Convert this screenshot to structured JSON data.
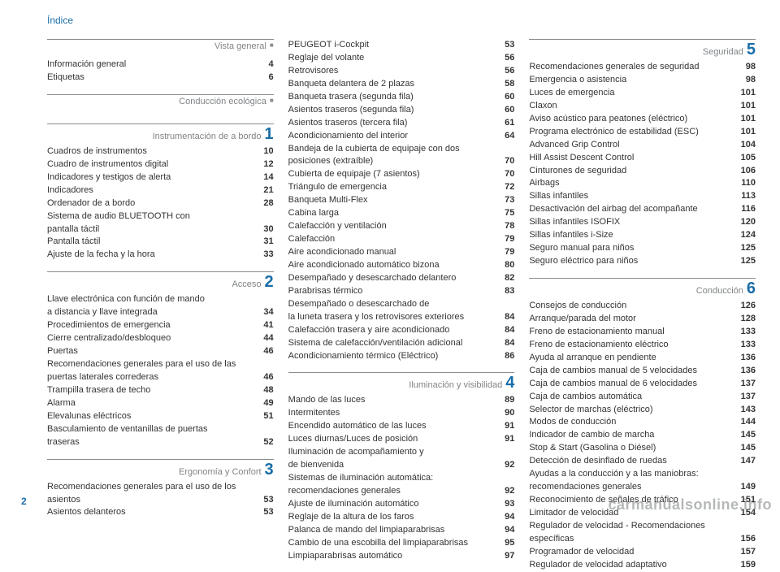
{
  "header": "Índice",
  "page_number": "2",
  "watermark": "carmanualsonline.info",
  "columns": [
    {
      "sections": [
        {
          "title": "Vista general",
          "marker": "dot",
          "entries": [
            {
              "label": "Información general",
              "page": "4"
            },
            {
              "label": "Etiquetas",
              "page": "6"
            }
          ]
        },
        {
          "title": "Conducción ecológica",
          "marker": "dot",
          "entries": []
        },
        {
          "title": "Instrumentación de a bordo",
          "marker": "1",
          "entries": [
            {
              "label": "Cuadros de instrumentos",
              "page": "10"
            },
            {
              "label": "Cuadro de instrumentos digital",
              "page": "12"
            },
            {
              "label": "Indicadores y testigos de alerta",
              "page": "14"
            },
            {
              "label": "Indicadores",
              "page": "21"
            },
            {
              "label": "Ordenador de a bordo",
              "page": "28"
            },
            {
              "label_lines": [
                "Sistema de audio BLUETOOTH con",
                "pantalla táctil"
              ],
              "page": "30"
            },
            {
              "label": "Pantalla táctil",
              "page": "31"
            },
            {
              "label": "Ajuste de la fecha y la hora",
              "page": "33"
            }
          ]
        },
        {
          "title": "Acceso",
          "marker": "2",
          "entries": [
            {
              "label_lines": [
                "Llave electrónica con función de mando",
                "a distancia y llave integrada"
              ],
              "page": "34"
            },
            {
              "label": "Procedimientos de emergencia",
              "page": "41"
            },
            {
              "label": "Cierre centralizado/desbloqueo",
              "page": "44"
            },
            {
              "label": "Puertas",
              "page": "46"
            },
            {
              "label_lines": [
                "Recomendaciones generales para el uso de las",
                "puertas laterales correderas"
              ],
              "page": "46"
            },
            {
              "label": "Trampilla trasera de techo",
              "page": "48"
            },
            {
              "label": "Alarma",
              "page": "49"
            },
            {
              "label": "Elevalunas eléctricos",
              "page": "51"
            },
            {
              "label_lines": [
                "Basculamiento de ventanillas de puertas",
                "traseras"
              ],
              "page": "52"
            }
          ]
        },
        {
          "title": "Ergonomía y Confort",
          "marker": "3",
          "entries": [
            {
              "label_lines": [
                "Recomendaciones generales para el uso de los",
                "asientos"
              ],
              "page": "53"
            },
            {
              "label": "Asientos delanteros",
              "page": "53"
            }
          ]
        }
      ]
    },
    {
      "sections": [
        {
          "title": "",
          "marker": "",
          "entries": [
            {
              "label": "PEUGEOT i-Cockpit",
              "page": "53"
            },
            {
              "label": "Reglaje del volante",
              "page": "56"
            },
            {
              "label": "Retrovisores",
              "page": "56"
            },
            {
              "label": "Banqueta delantera de 2 plazas",
              "page": "58"
            },
            {
              "label": "Banqueta trasera (segunda fila)",
              "page": "60"
            },
            {
              "label": "Asientos traseros (segunda fila)",
              "page": "60"
            },
            {
              "label": "Asientos traseros (tercera fila)",
              "page": "61"
            },
            {
              "label": "Acondicionamiento del interior",
              "page": "64"
            },
            {
              "label_lines": [
                "Bandeja de la cubierta de equipaje con dos",
                "posiciones (extraíble)"
              ],
              "page": "70"
            },
            {
              "label": "Cubierta de equipaje (7 asientos)",
              "page": "70"
            },
            {
              "label": "Triángulo de emergencia",
              "page": "72"
            },
            {
              "label": "Banqueta Multi-Flex",
              "page": "73"
            },
            {
              "label": "Cabina larga",
              "page": "75"
            },
            {
              "label": "Calefacción y ventilación",
              "page": "78"
            },
            {
              "label": "Calefacción",
              "page": "79"
            },
            {
              "label": "Aire acondicionado manual",
              "page": "79"
            },
            {
              "label": "Aire acondicionado automático bizona",
              "page": "80"
            },
            {
              "label": "Desempañado y desescarchado delantero",
              "page": "82"
            },
            {
              "label": "Parabrisas térmico",
              "page": "83"
            },
            {
              "label_lines": [
                "Desempañado o desescarchado de",
                "la luneta trasera y los retrovisores exteriores"
              ],
              "page": "84"
            },
            {
              "label": "Calefacción trasera y aire acondicionado",
              "page": "84"
            },
            {
              "label": "Sistema de calefacción/ventilación adicional",
              "page": "84"
            },
            {
              "label": "Acondicionamiento térmico (Eléctrico)",
              "page": "86"
            }
          ]
        },
        {
          "title": "Iluminación y visibilidad",
          "marker": "4",
          "entries": [
            {
              "label": "Mando de las luces",
              "page": "89"
            },
            {
              "label": "Intermitentes",
              "page": "90"
            },
            {
              "label": "Encendido automático de las luces",
              "page": "91"
            },
            {
              "label": "Luces diurnas/Luces de posición",
              "page": "91"
            },
            {
              "label_lines": [
                "Iluminación de acompañamiento y",
                "de bienvenida"
              ],
              "page": "92"
            },
            {
              "label_lines": [
                "Sistemas de iluminación automática:",
                "recomendaciones generales"
              ],
              "page": "92"
            },
            {
              "label": "Ajuste de iluminación automático",
              "page": "93"
            },
            {
              "label": "Reglaje de la altura de los faros",
              "page": "94"
            },
            {
              "label": "Palanca de mando del limpiaparabrisas",
              "page": "94"
            },
            {
              "label": "Cambio de una escobilla del limpiaparabrisas",
              "page": "95"
            },
            {
              "label": "Limpiaparabrisas automático",
              "page": "97"
            }
          ]
        }
      ]
    },
    {
      "sections": [
        {
          "title": "Seguridad",
          "marker": "5",
          "entries": [
            {
              "label": "Recomendaciones generales de seguridad",
              "page": "98"
            },
            {
              "label": "Emergencia o asistencia",
              "page": "98"
            },
            {
              "label": "Luces de emergencia",
              "page": "101"
            },
            {
              "label": "Claxon",
              "page": "101"
            },
            {
              "label": "Aviso acústico para peatones (eléctrico)",
              "page": "101"
            },
            {
              "label": "Programa electrónico de estabilidad (ESC)",
              "page": "101"
            },
            {
              "label": "Advanced Grip Control",
              "page": "104"
            },
            {
              "label": "Hill Assist Descent Control",
              "page": "105"
            },
            {
              "label": "Cinturones de seguridad",
              "page": "106"
            },
            {
              "label": "Airbags",
              "page": "110"
            },
            {
              "label": "Sillas infantiles",
              "page": "113"
            },
            {
              "label": "Desactivación del airbag del acompañante",
              "page": "116"
            },
            {
              "label": "Sillas infantiles ISOFIX",
              "page": "120"
            },
            {
              "label": "Sillas infantiles i-Size",
              "page": "124"
            },
            {
              "label": "Seguro manual para niños",
              "page": "125"
            },
            {
              "label": "Seguro eléctrico para niños",
              "page": "125"
            }
          ]
        },
        {
          "title": "Conducción",
          "marker": "6",
          "entries": [
            {
              "label": "Consejos de conducción",
              "page": "126"
            },
            {
              "label": "Arranque/parada del motor",
              "page": "128"
            },
            {
              "label": "Freno de estacionamiento manual",
              "page": "133"
            },
            {
              "label": "Freno de estacionamiento eléctrico",
              "page": "133"
            },
            {
              "label": "Ayuda al arranque en pendiente",
              "page": "136"
            },
            {
              "label": "Caja de cambios manual de 5 velocidades",
              "page": "136"
            },
            {
              "label": "Caja de cambios manual de 6 velocidades",
              "page": "137"
            },
            {
              "label": "Caja de cambios automática",
              "page": "137"
            },
            {
              "label": "Selector de marchas (eléctrico)",
              "page": "143"
            },
            {
              "label": "Modos de conducción",
              "page": "144"
            },
            {
              "label": "Indicador de cambio de marcha",
              "page": "145"
            },
            {
              "label": "Stop & Start (Gasolina o Diésel)",
              "page": "145"
            },
            {
              "label": "Detección de desinflado de ruedas",
              "page": "147"
            },
            {
              "label_lines": [
                "Ayudas a la conducción y a las maniobras:",
                "recomendaciones generales"
              ],
              "page": "149"
            },
            {
              "label": "Reconocimiento de señales de tráfico",
              "page": "151"
            },
            {
              "label": "Limitador de velocidad",
              "page": "154"
            },
            {
              "label_lines": [
                "Regulador de velocidad - Recomendaciones",
                "específicas"
              ],
              "page": "156"
            },
            {
              "label": "Programador de velocidad",
              "page": "157"
            },
            {
              "label": "Regulador de velocidad adaptativo",
              "page": "159"
            }
          ]
        }
      ]
    }
  ]
}
